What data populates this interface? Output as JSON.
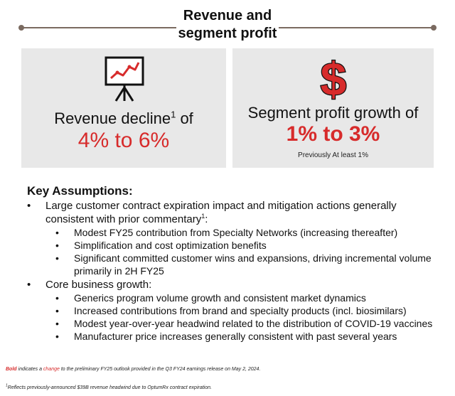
{
  "header": {
    "title_line1": "Revenue and",
    "title_line2": "segment profit"
  },
  "revenue_panel": {
    "icon": "presentation-chart-icon",
    "label": "Revenue decline",
    "label_sup": "1",
    "label_suffix": " of",
    "value": "4% to 6%"
  },
  "profit_panel": {
    "icon": "dollar-sign-icon",
    "label": "Segment profit growth of",
    "value": "1% to 3%",
    "note": "Previously At least 1%"
  },
  "assumptions": {
    "heading": "Key Assumptions:",
    "item1": {
      "line1": "Large customer contract expiration impact and mitigation actions generally",
      "line2": "consistent with prior commentary",
      "line2_sup": "1",
      "line2_suffix": ":",
      "sub": [
        "Modest FY25 contribution from Specialty Networks (increasing thereafter)",
        "Simplification and cost optimization benefits",
        "Significant committed customer wins and expansions, driving incremental volume",
        "primarily in 2H FY25"
      ]
    },
    "item2": {
      "line1": "Core business growth:",
      "sub": [
        "Generics program volume growth and consistent market dynamics",
        "Increased contributions from brand and specialty products (incl. biosimilars)",
        "Modest year-over-year headwind related to the distribution of COVID-19 vaccines",
        "Manufacturer price increases generally consistent with past several years"
      ]
    },
    "bullet_level1": "•",
    "bullet_level2": "•"
  },
  "footnotes": {
    "note1_bold": "Bold",
    "note1_part1": " indicates a ",
    "note1_change": "change",
    "note1_part2": " to the preliminary FY25 outlook provided in the Q3 FY24 earnings release on May 2, 2024.",
    "note2_sup": "1",
    "note2_text": "Reflects previously-announced $39B revenue headwind due to OptumRx contract expiration."
  },
  "colors": {
    "accent_red": "#d72b2b",
    "panel_bg": "#e8e8e8",
    "rule": "#7a6a60"
  }
}
